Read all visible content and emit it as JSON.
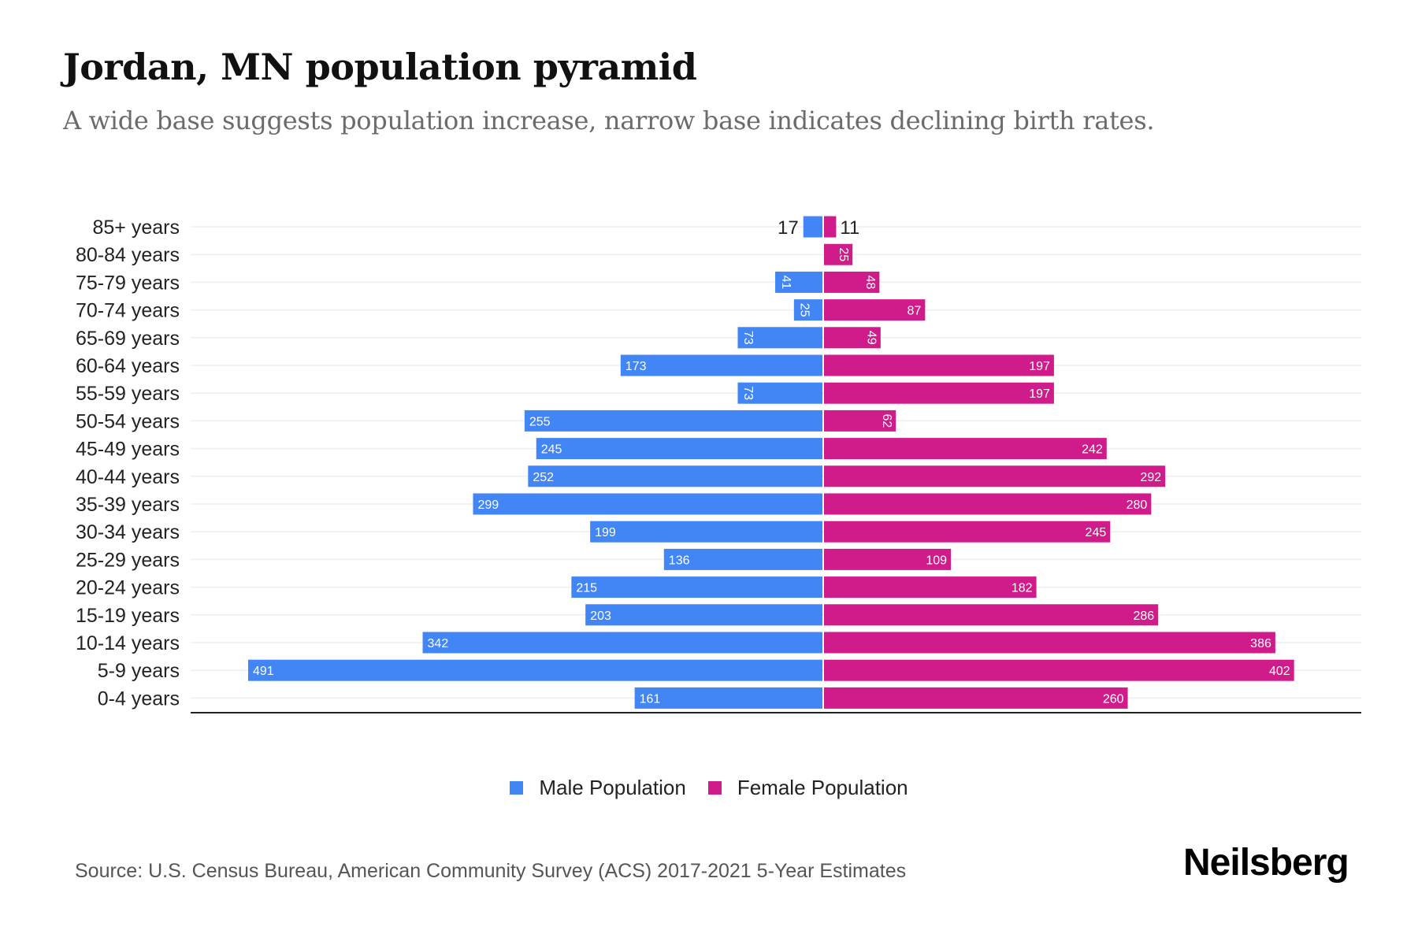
{
  "header": {
    "title": "Jordan, MN population pyramid",
    "subtitle": "A wide base suggests population increase, narrow base indicates declining birth rates."
  },
  "legend": {
    "male_label": "Male Population",
    "female_label": "Female Population"
  },
  "footer": {
    "source": "Source: U.S. Census Bureau, American Community Survey (ACS) 2017-2021 5-Year Estimates",
    "brand": "Neilsberg"
  },
  "colors": {
    "male": "#4285f4",
    "female": "#d01c8b",
    "grid": "#eeeeee",
    "axis": "#222222"
  },
  "chart_data": {
    "type": "bar",
    "orientation": "horizontal-pyramid",
    "title": "Jordan, MN population pyramid",
    "subtitle": "A wide base suggests population increase, narrow base indicates declining birth rates.",
    "xlabel": "",
    "ylabel": "",
    "categories": [
      "85+ years",
      "80-84 years",
      "75-79 years",
      "70-74 years",
      "65-69 years",
      "60-64 years",
      "55-59 years",
      "50-54 years",
      "45-49 years",
      "40-44 years",
      "35-39 years",
      "30-34 years",
      "25-29 years",
      "20-24 years",
      "15-19 years",
      "10-14 years",
      "5-9 years",
      "0-4 years"
    ],
    "series": [
      {
        "name": "Male Population",
        "side": "left",
        "values": [
          17,
          0,
          41,
          25,
          73,
          173,
          73,
          255,
          245,
          252,
          299,
          199,
          136,
          215,
          203,
          342,
          491,
          161
        ]
      },
      {
        "name": "Female Population",
        "side": "right",
        "values": [
          11,
          25,
          48,
          87,
          49,
          197,
          197,
          62,
          242,
          292,
          280,
          245,
          109,
          182,
          286,
          386,
          402,
          260
        ]
      }
    ],
    "xlim": [
      -550,
      550
    ],
    "grid": true,
    "legend_position": "bottom-center",
    "data_labels": true
  }
}
